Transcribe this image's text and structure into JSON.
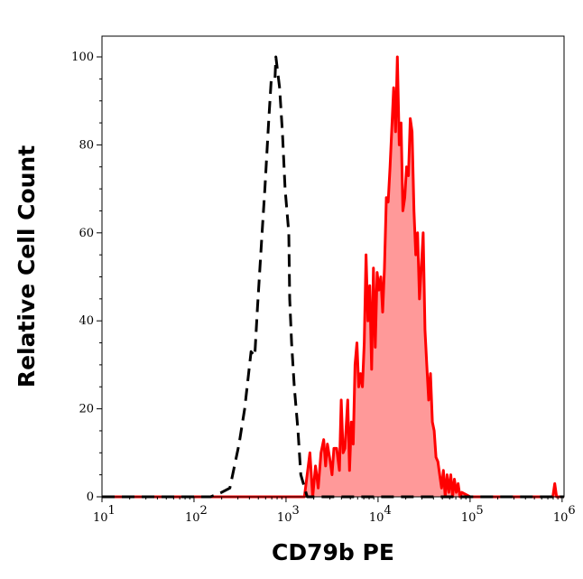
{
  "chart_data": {
    "type": "area",
    "xlabel": "CD79b PE",
    "ylabel": "Relative Cell Count",
    "x_scale": "log10",
    "xlim": [
      10,
      1050000
    ],
    "ylim": [
      0,
      105
    ],
    "grid": false,
    "x_ticks": [
      {
        "base": "10",
        "exp": "1",
        "value": 10
      },
      {
        "base": "10",
        "exp": "2",
        "value": 100
      },
      {
        "base": "10",
        "exp": "3",
        "value": 1000
      },
      {
        "base": "10",
        "exp": "4",
        "value": 10000
      },
      {
        "base": "10",
        "exp": "5",
        "value": 100000
      },
      {
        "base": "10",
        "exp": "6",
        "value": 1000000
      }
    ],
    "y_ticks": [
      "0",
      "20",
      "40",
      "60",
      "80",
      "100"
    ],
    "series": [
      {
        "style": "dashed-line",
        "color": "#000000",
        "filled": false,
        "log_x": [
          1.0,
          2.18,
          2.3,
          2.39,
          2.49,
          2.55,
          2.62,
          2.66,
          2.69,
          2.74,
          2.77,
          2.81,
          2.84,
          2.88,
          2.89,
          2.93,
          2.96,
          2.99,
          3.03,
          3.04,
          3.06,
          3.09,
          3.13,
          3.16,
          3.23,
          6.02
        ],
        "y": [
          0,
          0,
          1,
          2,
          12,
          20,
          33,
          32,
          43,
          60,
          70,
          85,
          95,
          95,
          100,
          93,
          83,
          70,
          60,
          45,
          35,
          25,
          15,
          5,
          0,
          0
        ]
      },
      {
        "style": "solid-line",
        "color": "#ff0000",
        "fill": "#ff9999",
        "filled": true,
        "log_x": [
          1.0,
          3.2,
          3.26,
          3.29,
          3.32,
          3.35,
          3.38,
          3.41,
          3.43,
          3.45,
          3.48,
          3.5,
          3.52,
          3.55,
          3.58,
          3.6,
          3.62,
          3.64,
          3.67,
          3.69,
          3.71,
          3.73,
          3.75,
          3.77,
          3.79,
          3.81,
          3.83,
          3.85,
          3.87,
          3.89,
          3.91,
          3.93,
          3.95,
          3.97,
          3.99,
          4.01,
          4.03,
          4.05,
          4.07,
          4.09,
          4.11,
          4.13,
          4.15,
          4.17,
          4.19,
          4.21,
          4.23,
          4.25,
          4.27,
          4.29,
          4.31,
          4.33,
          4.35,
          4.37,
          4.39,
          4.41,
          4.43,
          4.45,
          4.47,
          4.49,
          4.51,
          4.53,
          4.55,
          4.57,
          4.59,
          4.61,
          4.63,
          4.65,
          4.67,
          4.69,
          4.71,
          4.73,
          4.75,
          4.77,
          4.79,
          4.81,
          4.83,
          4.85,
          4.87,
          4.89,
          4.91,
          5.0,
          5.9,
          5.92,
          5.94,
          6.02
        ],
        "y": [
          0,
          0,
          10,
          0,
          7,
          2,
          10,
          13,
          7,
          12,
          8,
          5,
          11,
          11,
          6,
          22,
          10,
          11,
          22,
          6,
          17,
          12,
          30,
          35,
          25,
          28,
          25,
          35,
          55,
          40,
          48,
          29,
          52,
          34,
          51,
          47,
          50,
          42,
          52,
          68,
          67,
          75,
          84,
          93,
          83,
          100,
          80,
          85,
          65,
          68,
          75,
          73,
          86,
          83,
          65,
          55,
          60,
          45,
          52,
          60,
          38,
          30,
          22,
          28,
          17,
          15,
          9,
          8,
          5,
          2,
          6,
          0,
          5,
          1,
          5,
          0,
          4,
          1,
          3,
          0,
          1,
          0,
          0,
          3,
          0,
          0
        ]
      }
    ]
  }
}
